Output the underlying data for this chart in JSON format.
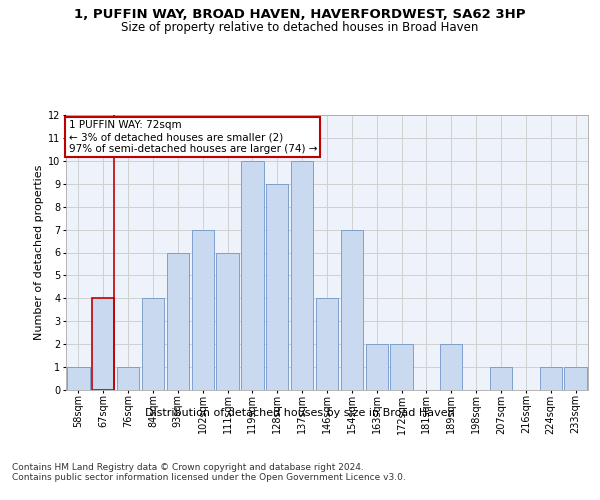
{
  "title_line1": "1, PUFFIN WAY, BROAD HAVEN, HAVERFORDWEST, SA62 3HP",
  "title_line2": "Size of property relative to detached houses in Broad Haven",
  "xlabel": "Distribution of detached houses by size in Broad Haven",
  "ylabel": "Number of detached properties",
  "footnote": "Contains HM Land Registry data © Crown copyright and database right 2024.\nContains public sector information licensed under the Open Government Licence v3.0.",
  "annotation_title": "1 PUFFIN WAY: 72sqm",
  "annotation_line1": "← 3% of detached houses are smaller (2)",
  "annotation_line2": "97% of semi-detached houses are larger (74) →",
  "bar_labels": [
    "58sqm",
    "67sqm",
    "76sqm",
    "84sqm",
    "93sqm",
    "102sqm",
    "111sqm",
    "119sqm",
    "128sqm",
    "137sqm",
    "146sqm",
    "154sqm",
    "163sqm",
    "172sqm",
    "181sqm",
    "189sqm",
    "198sqm",
    "207sqm",
    "216sqm",
    "224sqm",
    "233sqm"
  ],
  "bar_values": [
    1,
    4,
    1,
    4,
    6,
    7,
    6,
    10,
    9,
    10,
    4,
    7,
    2,
    2,
    0,
    2,
    0,
    1,
    0,
    1,
    1
  ],
  "bar_color": "#c9d9f0",
  "bar_edge_color": "#7096c8",
  "highlight_bar_index": 1,
  "vline_color": "#c00000",
  "annotation_box_edge_color": "#c00000",
  "ylim": [
    0,
    12
  ],
  "yticks": [
    0,
    1,
    2,
    3,
    4,
    5,
    6,
    7,
    8,
    9,
    10,
    11,
    12
  ],
  "grid_color": "#d0d0d0",
  "bg_color": "#eef2fb",
  "fig_bg_color": "#ffffff",
  "title_fontsize": 9.5,
  "subtitle_fontsize": 8.5,
  "axis_label_fontsize": 8,
  "tick_fontsize": 7,
  "annotation_fontsize": 7.5,
  "footnote_fontsize": 6.5
}
